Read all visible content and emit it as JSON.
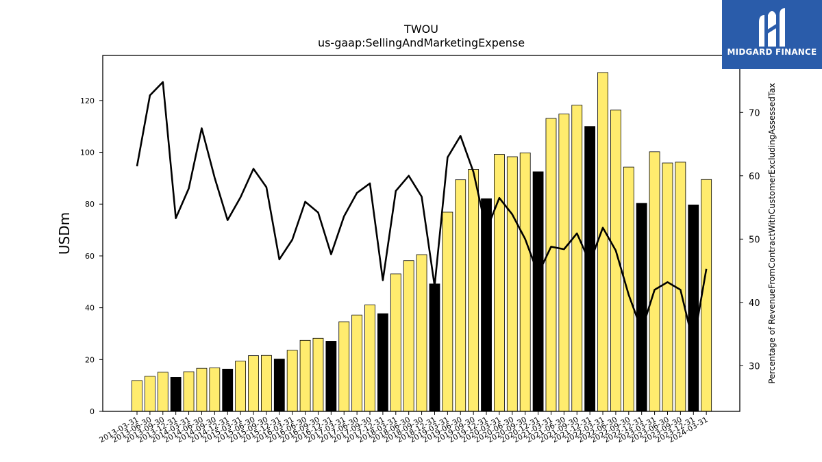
{
  "chart_data": {
    "type": "bar",
    "title": "TWOU",
    "subtitle": "us-gaap:SellingAndMarketingExpense",
    "ylabel": "USDm",
    "y2label": "Percentage of RevenueFromContractWithCustomerExcludingAssessedTax",
    "ylim": [
      0,
      137.4
    ],
    "y2lim": [
      22.8,
      79.0
    ],
    "yticks": [
      0,
      20,
      40,
      60,
      80,
      100,
      120
    ],
    "y2ticks": [
      30,
      40,
      50,
      60,
      70
    ],
    "grid": false,
    "categories": [
      "2013-03-31",
      "2013-06-30",
      "2013-09-30",
      "2013-12-31",
      "2014-03-31",
      "2014-06-30",
      "2014-09-30",
      "2014-12-31",
      "2015-03-31",
      "2015-06-30",
      "2015-09-30",
      "2015-12-31",
      "2016-03-31",
      "2016-06-30",
      "2016-09-30",
      "2016-12-31",
      "2017-03-31",
      "2017-06-30",
      "2017-09-30",
      "2017-12-31",
      "2018-03-31",
      "2018-06-30",
      "2018-09-30",
      "2018-12-31",
      "2019-03-31",
      "2019-06-30",
      "2019-09-30",
      "2019-12-31",
      "2020-03-31",
      "2020-06-30",
      "2020-09-30",
      "2020-12-31",
      "2021-03-31",
      "2021-06-30",
      "2021-09-30",
      "2021-12-31",
      "2022-03-31",
      "2022-06-30",
      "2022-09-30",
      "2022-12-31",
      "2023-03-31",
      "2023-06-30",
      "2023-09-30",
      "2023-12-31",
      "2024-03-31"
    ],
    "series": [
      {
        "type": "bar",
        "axis": "left",
        "values": [
          11.9,
          13.6,
          15.1,
          13.1,
          15.3,
          16.6,
          16.8,
          16.3,
          19.4,
          21.5,
          21.6,
          20.2,
          23.6,
          27.4,
          28.2,
          27.1,
          34.6,
          37.2,
          41.1,
          37.7,
          53.1,
          58.2,
          60.5,
          49.2,
          76.9,
          89.4,
          93.4,
          82.1,
          99.2,
          98.3,
          99.8,
          92.5,
          113.1,
          114.8,
          118.2,
          110.0,
          130.8,
          116.3,
          94.3,
          80.3,
          100.2,
          95.9,
          96.2,
          79.7,
          89.5
        ],
        "colors": [
          "#ffec6e",
          "#ffec6e",
          "#ffec6e",
          "#000000",
          "#ffec6e",
          "#ffec6e",
          "#ffec6e",
          "#000000",
          "#ffec6e",
          "#ffec6e",
          "#ffec6e",
          "#000000",
          "#ffec6e",
          "#ffec6e",
          "#ffec6e",
          "#000000",
          "#ffec6e",
          "#ffec6e",
          "#ffec6e",
          "#000000",
          "#ffec6e",
          "#ffec6e",
          "#ffec6e",
          "#000000",
          "#ffec6e",
          "#ffec6e",
          "#ffec6e",
          "#000000",
          "#ffec6e",
          "#ffec6e",
          "#ffec6e",
          "#000000",
          "#ffec6e",
          "#ffec6e",
          "#ffec6e",
          "#000000",
          "#ffec6e",
          "#ffec6e",
          "#ffec6e",
          "#000000",
          "#ffec6e",
          "#ffec6e",
          "#ffec6e",
          "#000000",
          "#ffec6e"
        ]
      },
      {
        "type": "line",
        "axis": "right",
        "color": "#000000",
        "values": [
          61.5,
          72.7,
          74.8,
          53.3,
          58.0,
          67.5,
          59.7,
          53.0,
          56.6,
          61.1,
          58.2,
          46.8,
          49.9,
          55.9,
          54.2,
          47.6,
          53.6,
          57.3,
          58.8,
          43.5,
          57.6,
          60.0,
          56.7,
          42.6,
          62.9,
          66.3,
          60.6,
          51.4,
          56.5,
          53.9,
          50.0,
          44.5,
          48.8,
          48.4,
          50.9,
          46.3,
          51.8,
          48.2,
          41.2,
          35.6,
          42.0,
          43.2,
          42.0,
          33.5,
          45.3
        ]
      }
    ]
  },
  "logo": {
    "text": "MIDGARD FINANCE"
  }
}
